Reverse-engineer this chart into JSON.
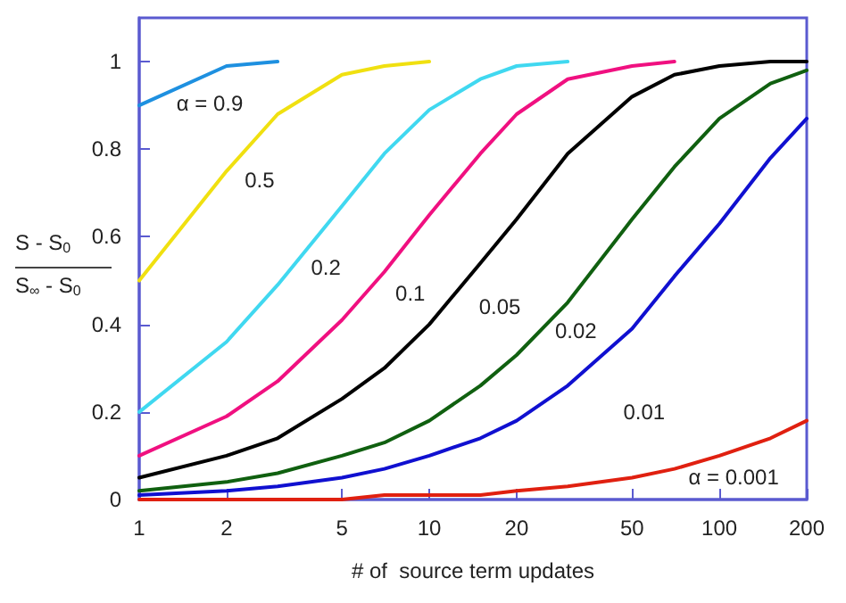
{
  "chart_data": {
    "type": "line",
    "xlabel": "# of  source term updates",
    "ylabel": "S - S$_{0}$\nS$_{∞}$ - S$_{0}$",
    "x": [
      1,
      2,
      3,
      5,
      7,
      10,
      15,
      20,
      30,
      50,
      70,
      100,
      150,
      200
    ],
    "xlim": [
      1,
      200
    ],
    "xticks": [
      1,
      2,
      5,
      10,
      20,
      50,
      100,
      200
    ],
    "ylim": [
      0,
      1.1
    ],
    "yticks": [
      0,
      0.2,
      0.4,
      0.6,
      0.8,
      1
    ],
    "log": "x",
    "grid": false,
    "legend": false,
    "marker": "none",
    "line_style": "solid",
    "series": [
      {
        "name": "α = 0.9",
        "color": "#1e90e0",
        "x": [
          1,
          2,
          3
        ],
        "values": [
          0.9,
          0.99,
          1
        ]
      },
      {
        "name": "0.5",
        "color": "#f0e010",
        "x": [
          1,
          2,
          3,
          5,
          7,
          10
        ],
        "values": [
          0.5,
          0.75,
          0.88,
          0.97,
          0.99,
          1
        ]
      },
      {
        "name": "0.2",
        "color": "#40d8f0",
        "x": [
          1,
          2,
          3,
          5,
          7,
          10,
          15,
          20,
          30
        ],
        "values": [
          0.2,
          0.36,
          0.49,
          0.67,
          0.79,
          0.89,
          0.96,
          0.99,
          1
        ]
      },
      {
        "name": "0.1",
        "color": "#f01080",
        "x": [
          1,
          2,
          3,
          5,
          7,
          10,
          15,
          20,
          30,
          50,
          70
        ],
        "values": [
          0.1,
          0.19,
          0.27,
          0.41,
          0.52,
          0.65,
          0.79,
          0.88,
          0.96,
          0.99,
          1
        ]
      },
      {
        "name": "0.05",
        "color": "#000000",
        "values": [
          0.05,
          0.1,
          0.14,
          0.23,
          0.3,
          0.4,
          0.54,
          0.64,
          0.79,
          0.92,
          0.97,
          0.99,
          1,
          1
        ]
      },
      {
        "name": "0.02",
        "color": "#106010",
        "values": [
          0.02,
          0.04,
          0.06,
          0.1,
          0.13,
          0.18,
          0.26,
          0.33,
          0.45,
          0.64,
          0.76,
          0.87,
          0.95,
          0.98
        ]
      },
      {
        "name": "0.01",
        "color": "#1010d0",
        "values": [
          0.01,
          0.02,
          0.03,
          0.05,
          0.07,
          0.1,
          0.14,
          0.18,
          0.26,
          0.39,
          0.51,
          0.63,
          0.78,
          0.87
        ]
      },
      {
        "name": "α = 0.001",
        "color": "#e02010",
        "values": [
          0,
          0,
          0,
          0,
          0.01,
          0.01,
          0.01,
          0.02,
          0.03,
          0.05,
          0.07,
          0.1,
          0.14,
          0.18
        ]
      }
    ]
  }
}
